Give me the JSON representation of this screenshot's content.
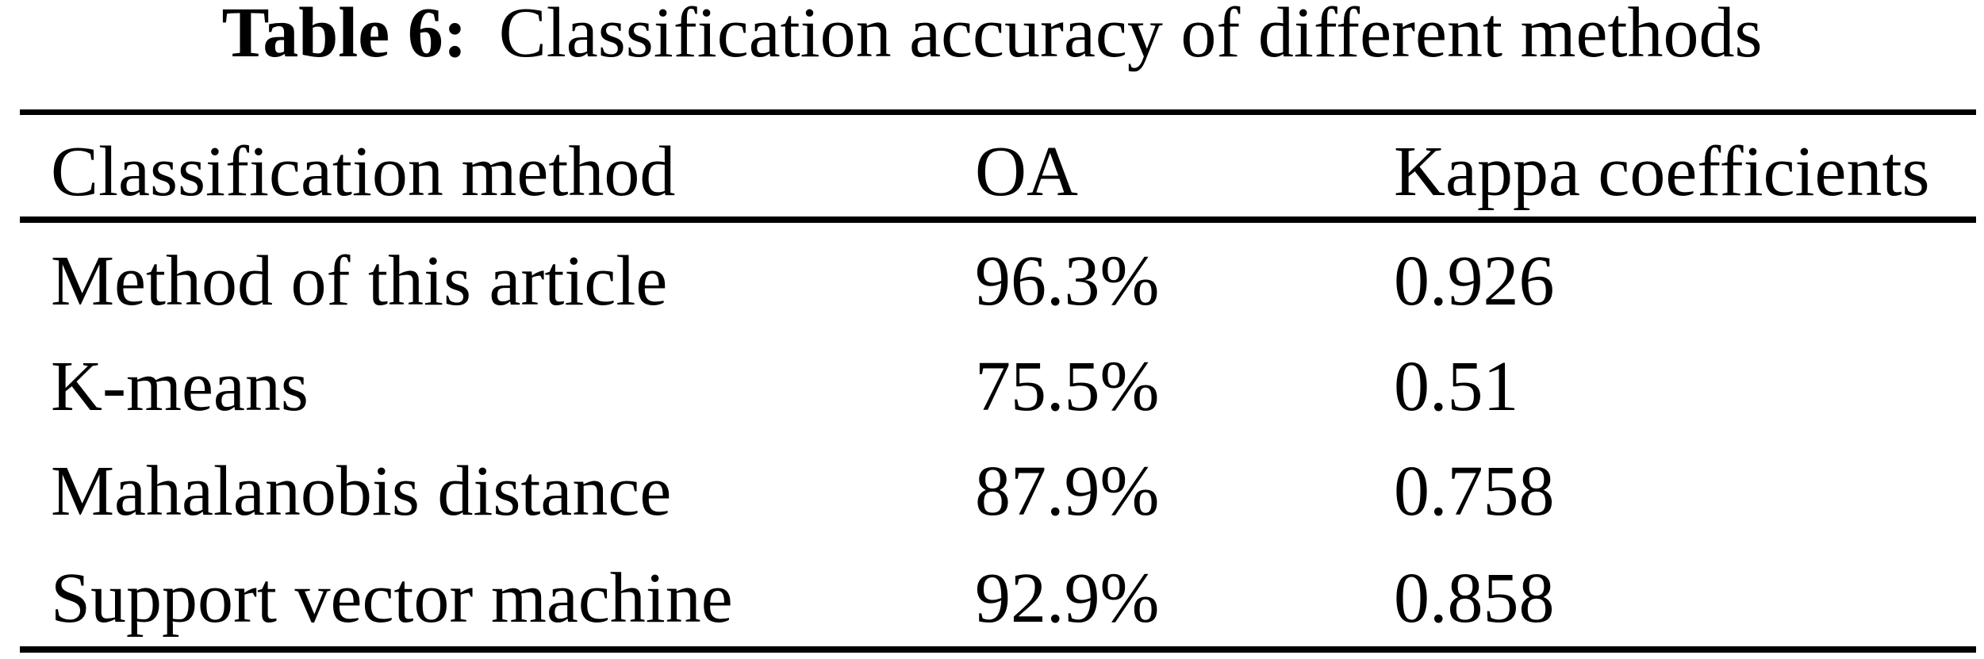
{
  "caption": {
    "label": "Table 6:",
    "text": "Classification accuracy of different methods"
  },
  "table": {
    "columns": {
      "method": "Classification method",
      "oa": "OA",
      "kappa": "Kappa coefficients"
    },
    "rows": [
      {
        "method": "Method of this article",
        "oa": "96.3%",
        "kappa": "0.926"
      },
      {
        "method": "K-means",
        "oa": "75.5%",
        "kappa": "0.51"
      },
      {
        "method": "Mahalanobis distance",
        "oa": "87.9%",
        "kappa": "0.758"
      },
      {
        "method": "Support vector machine",
        "oa": "92.9%",
        "kappa": "0.858"
      }
    ]
  },
  "colors": {
    "text": "#000000",
    "background": "#ffffff",
    "rule": "#000000"
  }
}
